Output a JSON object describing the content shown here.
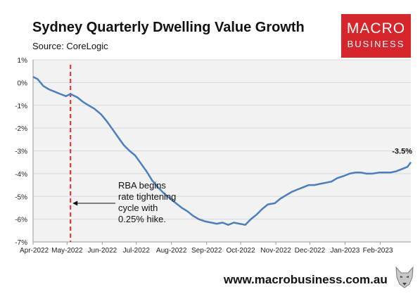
{
  "title": "Sydney Quarterly Dwelling Value Growth",
  "source": "Source: CoreLogic",
  "logo": {
    "line1": "MACRO",
    "line2": "BUSINESS",
    "color": "#d7262b"
  },
  "footer": {
    "url": "www.macrobusiness.com.au"
  },
  "colors": {
    "series": "#4a7ebf",
    "event_line": "#e8262b",
    "plot_bg": "#f2f2f2",
    "grid": "#d9d9d9"
  },
  "chart_data": {
    "type": "line",
    "title": "Sydney Quarterly Dwelling Value Growth",
    "xlabel": "",
    "ylabel": "",
    "ylim": [
      -7,
      1
    ],
    "y_ticks": [
      1,
      0,
      -1,
      -2,
      -3,
      -4,
      -5,
      -6,
      -7
    ],
    "y_tick_labels": [
      "1%",
      "0%",
      "-1%",
      "-2%",
      "-3%",
      "-4%",
      "-5%",
      "-6%",
      "-7%"
    ],
    "x_tick_labels": [
      "Apr-2022",
      "May-2022",
      "Jun-2022",
      "Jul-2022",
      "Aug-2022",
      "Sep-2022",
      "Oct-2022",
      "Nov-2022",
      "Dec-2022",
      "Jan-2023",
      "Feb-2023"
    ],
    "grid": "horizontal",
    "series": [
      {
        "x": [
          "2022-04-01",
          "2022-04-05",
          "2022-04-10",
          "2022-04-15",
          "2022-04-20",
          "2022-04-25",
          "2022-04-30",
          "2022-05-04",
          "2022-05-10",
          "2022-05-15",
          "2022-05-20",
          "2022-05-25",
          "2022-05-31",
          "2022-06-05",
          "2022-06-10",
          "2022-06-15",
          "2022-06-20",
          "2022-06-25",
          "2022-06-30",
          "2022-07-05",
          "2022-07-10",
          "2022-07-15",
          "2022-07-20",
          "2022-07-25",
          "2022-07-31",
          "2022-08-05",
          "2022-08-10",
          "2022-08-15",
          "2022-08-20",
          "2022-08-25",
          "2022-08-31",
          "2022-09-05",
          "2022-09-10",
          "2022-09-15",
          "2022-09-20",
          "2022-09-25",
          "2022-09-30",
          "2022-10-05",
          "2022-10-10",
          "2022-10-15",
          "2022-10-20",
          "2022-10-25",
          "2022-10-31",
          "2022-11-05",
          "2022-11-10",
          "2022-11-15",
          "2022-11-20",
          "2022-11-25",
          "2022-11-30",
          "2022-12-05",
          "2022-12-10",
          "2022-12-15",
          "2022-12-20",
          "2022-12-25",
          "2022-12-31",
          "2023-01-05",
          "2023-01-10",
          "2023-01-15",
          "2023-01-20",
          "2023-01-25",
          "2023-01-31",
          "2023-02-05",
          "2023-02-10",
          "2023-02-15",
          "2023-02-20",
          "2023-02-25",
          "2023-02-28"
        ],
        "values": [
          0.25,
          0.15,
          -0.15,
          -0.3,
          -0.4,
          -0.5,
          -0.6,
          -0.5,
          -0.65,
          -0.85,
          -1.0,
          -1.15,
          -1.4,
          -1.7,
          -2.05,
          -2.4,
          -2.75,
          -3.0,
          -3.2,
          -3.55,
          -3.9,
          -4.3,
          -4.6,
          -4.85,
          -5.1,
          -5.3,
          -5.5,
          -5.65,
          -5.85,
          -6.0,
          -6.1,
          -6.15,
          -6.2,
          -6.15,
          -6.25,
          -6.15,
          -6.2,
          -6.25,
          -6.0,
          -5.8,
          -5.55,
          -5.35,
          -5.3,
          -5.1,
          -4.95,
          -4.8,
          -4.7,
          -4.6,
          -4.5,
          -4.5,
          -4.45,
          -4.4,
          -4.35,
          -4.2,
          -4.1,
          -4.0,
          -3.95,
          -3.95,
          -4.0,
          -4.0,
          -3.95,
          -3.95,
          -3.95,
          -3.9,
          -3.8,
          -3.7,
          -3.5
        ]
      }
    ],
    "end_label": "-3.5%",
    "event": {
      "x": "2022-05-04",
      "style": "dashed",
      "color": "#e8262b"
    },
    "annotation": {
      "lines": [
        "RBA begins",
        "rate tightening",
        "cycle with",
        "0.25% hike."
      ],
      "target_value": -5.3
    }
  }
}
